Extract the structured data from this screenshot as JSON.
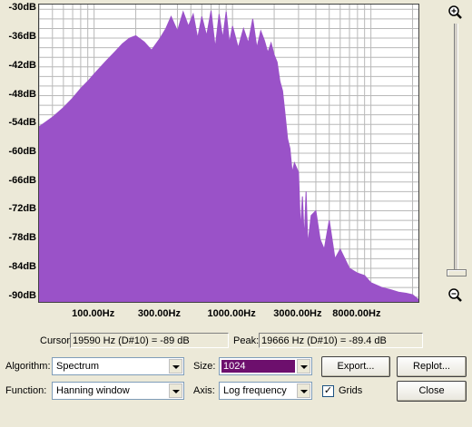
{
  "chart_data": {
    "type": "area",
    "x_scale": "log",
    "xlim": [
      40,
      22050
    ],
    "ylim": [
      -91,
      -29
    ],
    "y_ticks": [
      "-30dB",
      "-36dB",
      "-42dB",
      "-48dB",
      "-54dB",
      "-60dB",
      "-66dB",
      "-72dB",
      "-78dB",
      "-84dB",
      "-90dB"
    ],
    "y_tick_values": [
      -30,
      -36,
      -42,
      -48,
      -54,
      -60,
      -66,
      -72,
      -78,
      -84,
      -90
    ],
    "x_ticks": [
      "100.00Hz",
      "300.00Hz",
      "1000.00Hz",
      "3000.00Hz",
      "8000.00Hz"
    ],
    "x_tick_values": [
      100,
      300,
      1000,
      3000,
      8000
    ],
    "grid": true,
    "fill_color": "#9a52c8",
    "x": [
      40,
      50,
      60,
      70,
      80,
      90,
      100,
      120,
      140,
      160,
      180,
      200,
      230,
      260,
      300,
      330,
      360,
      400,
      440,
      480,
      520,
      560,
      600,
      650,
      700,
      750,
      800,
      850,
      900,
      950,
      1000,
      1100,
      1200,
      1300,
      1400,
      1500,
      1600,
      1700,
      1800,
      1900,
      2000,
      2100,
      2200,
      2300,
      2400,
      2500,
      2600,
      2700,
      2800,
      3000,
      3100,
      3200,
      3300,
      3400,
      3500,
      3700,
      4000,
      4300,
      4600,
      5000,
      5500,
      6000,
      7000,
      8000,
      9000,
      10000,
      12000,
      14000,
      16000,
      18000,
      20000,
      21000,
      22050
    ],
    "y": [
      -54.5,
      -52.5,
      -50.5,
      -48.5,
      -46.5,
      -45,
      -43.5,
      -41,
      -39,
      -37.2,
      -36,
      -35.5,
      -36.8,
      -38.5,
      -36,
      -34,
      -31.5,
      -34.5,
      -30.5,
      -33.5,
      -31,
      -36,
      -31.5,
      -35.5,
      -30.3,
      -38,
      -31,
      -36,
      -30.5,
      -37,
      -33.5,
      -38,
      -34,
      -37,
      -32,
      -38,
      -34.5,
      -36.5,
      -39,
      -37,
      -39.5,
      -41,
      -45,
      -47,
      -52,
      -57,
      -59,
      -64,
      -62,
      -64,
      -76,
      -69,
      -78,
      -68,
      -79,
      -73,
      -72,
      -78,
      -80,
      -74,
      -82,
      -80,
      -84,
      -85,
      -85.5,
      -87,
      -88,
      -88.5,
      -89,
      -89.2,
      -89.5,
      -90,
      -90.5
    ]
  },
  "cursor": {
    "label": "Cursor:",
    "value": "19590 Hz (D#10) = -89 dB"
  },
  "peak": {
    "label": "Peak:",
    "value": "19666 Hz (D#10) = -89.4 dB"
  },
  "controls": {
    "algorithm_label": "Algorithm:",
    "algorithm_value": "Spectrum",
    "function_label": "Function:",
    "function_value": "Hanning window",
    "size_label": "Size:",
    "size_value": "1024",
    "axis_label": "Axis:",
    "axis_value": "Log frequency",
    "grids_label": "Grids",
    "grids_checked": "✓",
    "export_label": "Export...",
    "replot_label": "Replot...",
    "close_label": "Close"
  },
  "icons": {
    "zoom_in": "zoom-in-icon",
    "zoom_out": "zoom-out-icon"
  }
}
